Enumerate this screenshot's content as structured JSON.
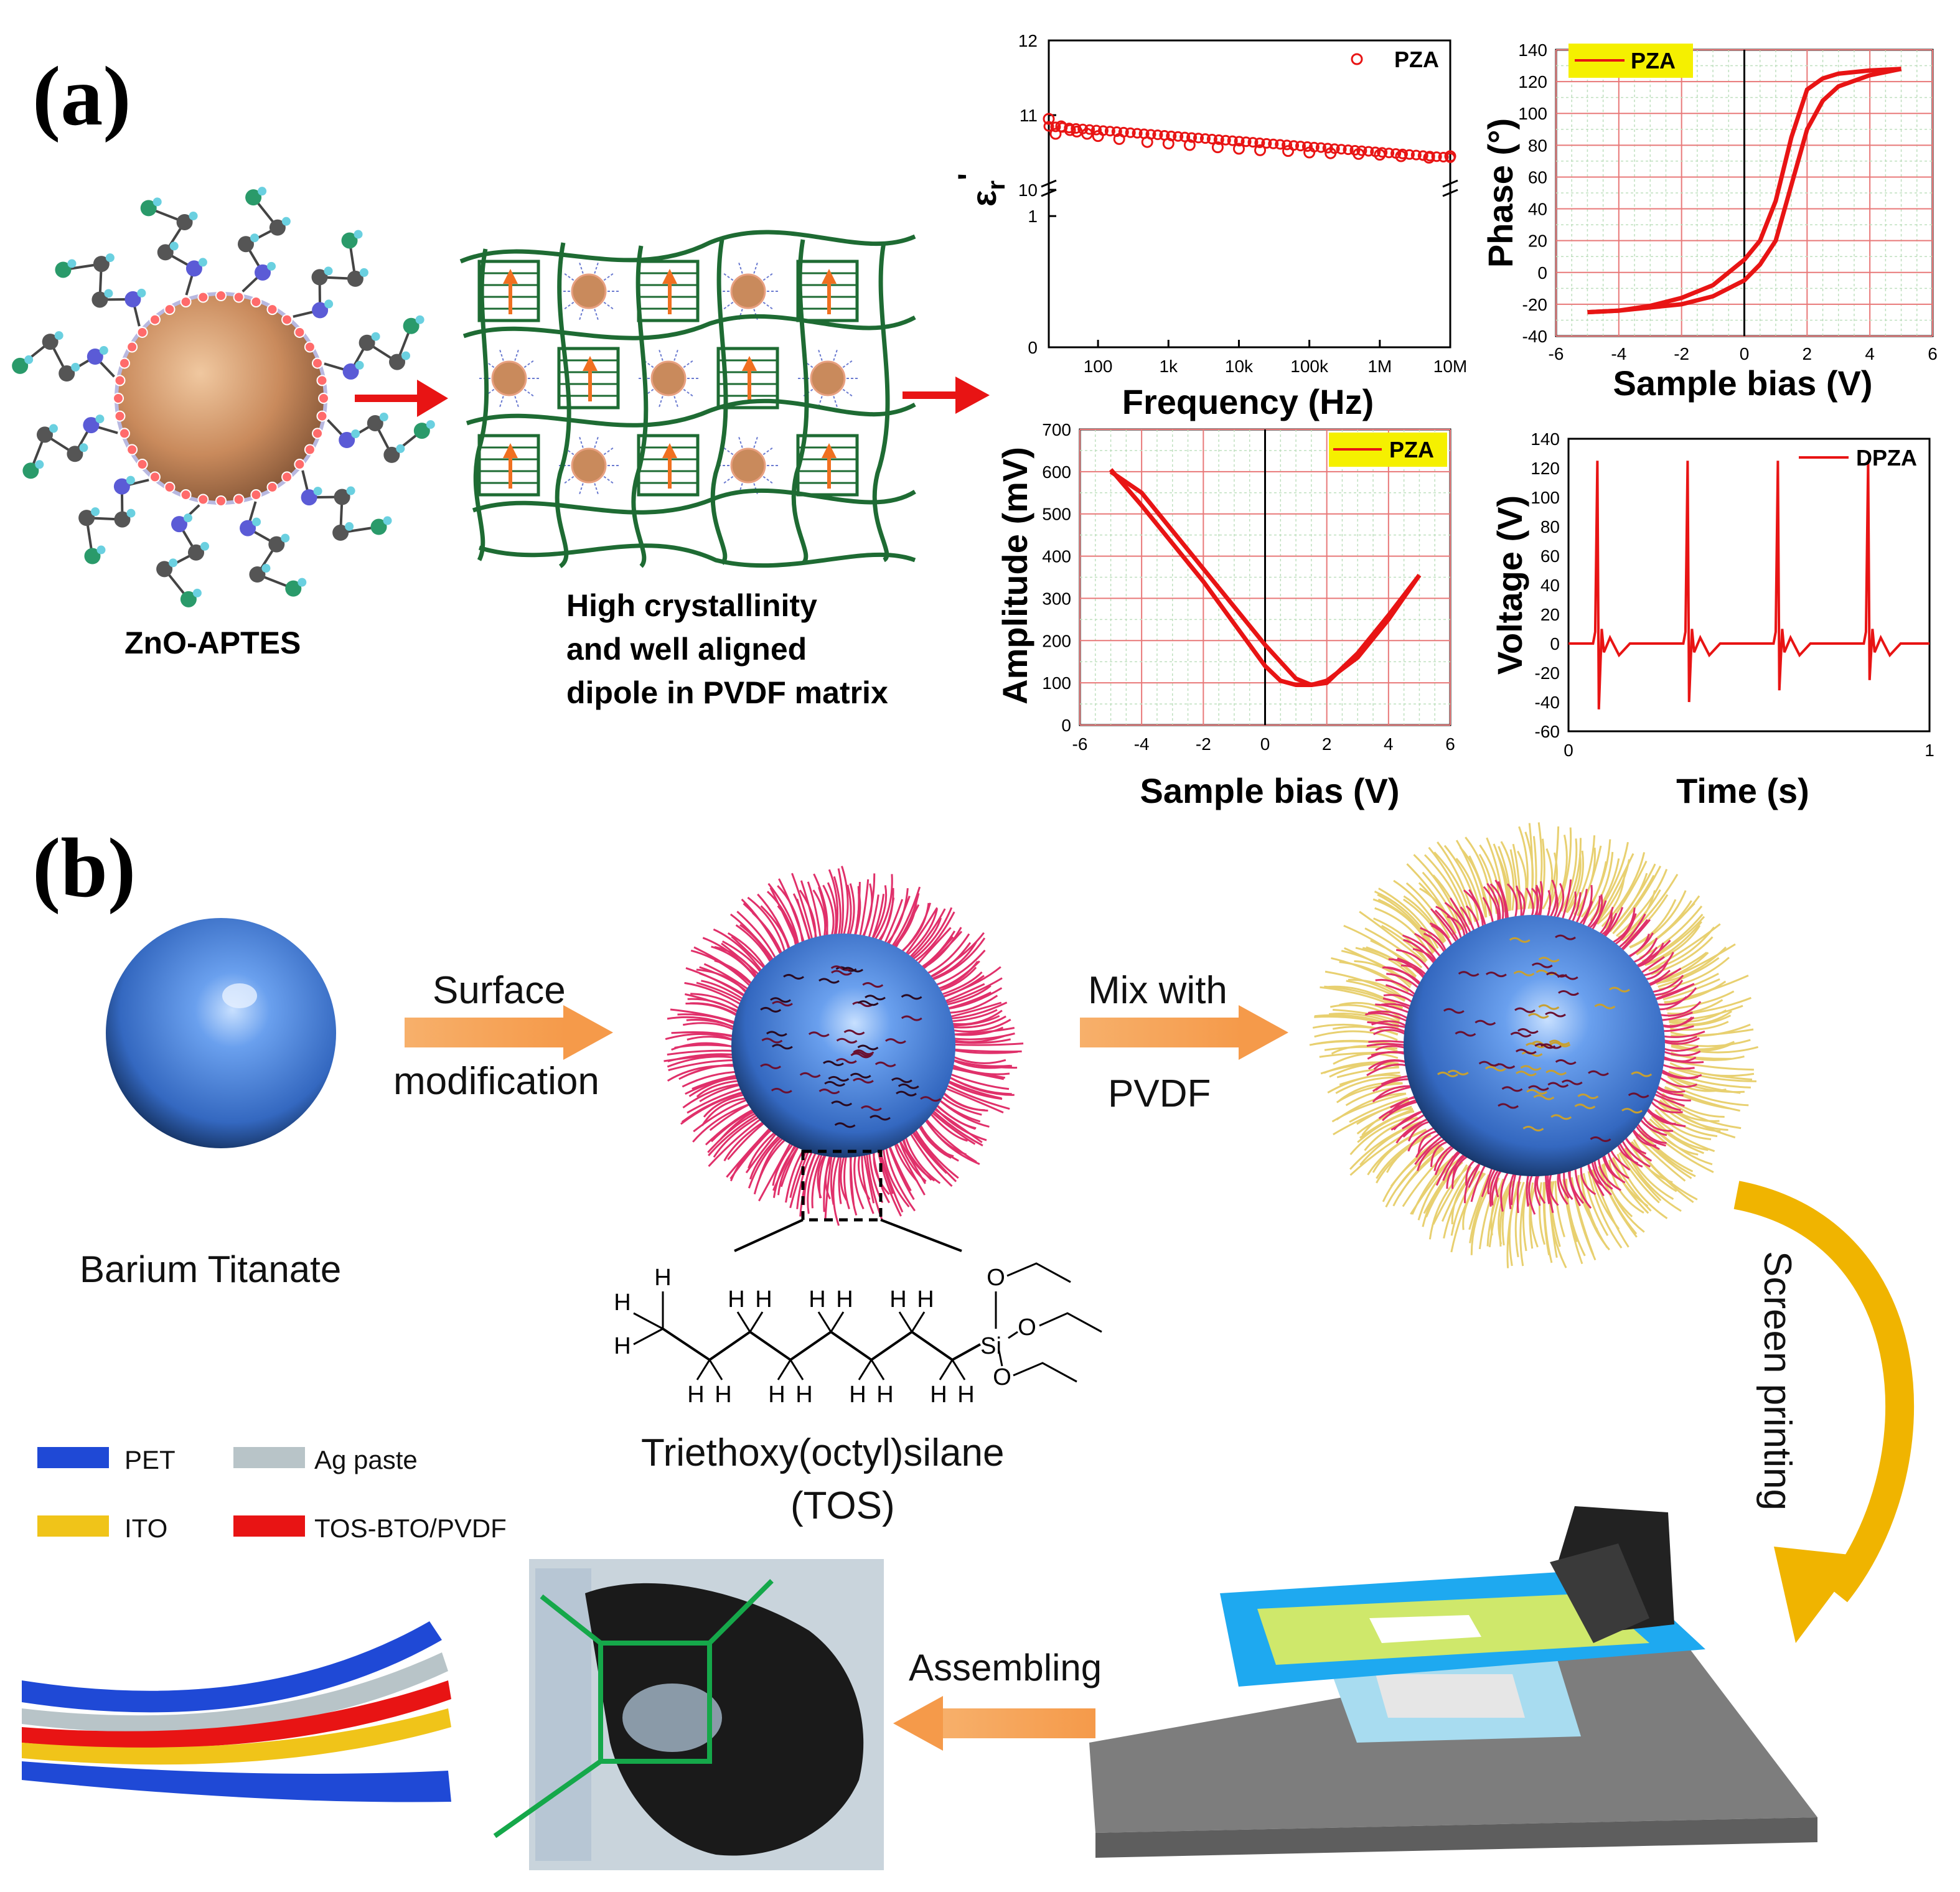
{
  "panels": {
    "a": {
      "label": "(a)",
      "zno_caption": "ZnO-APTES",
      "matrix_caption": [
        "High crystallinity",
        "and well aligned",
        "dipole in PVDF matrix"
      ]
    },
    "b": {
      "label": "(b)",
      "step1_label": "Barium Titanate",
      "arrow1": [
        "Surface",
        "modification"
      ],
      "arrow2": [
        "Mix with",
        "PVDF"
      ],
      "arrow3": "Screen printing",
      "arrow4": "Assembling",
      "molecule_name": [
        "Triethoxy(octyl)silane",
        "(TOS)"
      ],
      "atoms": {
        "h": "H",
        "si": "Si",
        "o": "O"
      },
      "layer_legend": [
        {
          "label": "PET",
          "color": "#1f49d6"
        },
        {
          "label": "Ag paste",
          "color": "#b8c4c8"
        },
        {
          "label": "ITO",
          "color": "#f0c419"
        },
        {
          "label": "TOS-BTO/PVDF",
          "color": "#e81414"
        }
      ]
    }
  },
  "chart_data": [
    {
      "type": "scatter",
      "id": "permittivity",
      "xlabel": "Frequency (Hz)",
      "ylabel": "εr'",
      "legend": "PZA",
      "x_scale": "log",
      "xlim": [
        20,
        10000000
      ],
      "x_ticks": [
        "100",
        "1k",
        "10k",
        "100k",
        "1M",
        "10M"
      ],
      "y_ticks_lower": [
        "0",
        "1"
      ],
      "y_ticks_upper": [
        "10",
        "11",
        "12"
      ],
      "y_break": [
        1,
        10
      ],
      "x": [
        20,
        25,
        30,
        40,
        50,
        70,
        100,
        200,
        500,
        1000,
        2000,
        5000,
        10000,
        20000,
        50000,
        100000,
        200000,
        500000,
        1000000,
        2000000,
        5000000,
        10000000
      ],
      "y": [
        10.95,
        10.75,
        10.85,
        10.8,
        10.78,
        10.75,
        10.72,
        10.68,
        10.64,
        10.62,
        10.6,
        10.57,
        10.55,
        10.53,
        10.52,
        10.5,
        10.49,
        10.48,
        10.47,
        10.45,
        10.43,
        10.45
      ]
    },
    {
      "type": "line",
      "id": "phase",
      "xlabel": "Sample bias (V)",
      "ylabel": "Phase (°)",
      "legend": "PZA",
      "xlim": [
        -6,
        6
      ],
      "ylim": [
        -40,
        140
      ],
      "x_ticks": [
        "-6",
        "-4",
        "-2",
        "0",
        "2",
        "4",
        "6"
      ],
      "y_ticks": [
        "-40",
        "-20",
        "0",
        "20",
        "40",
        "60",
        "80",
        "100",
        "120",
        "140"
      ],
      "forward": {
        "x": [
          -5,
          -4,
          -3,
          -2,
          -1,
          0,
          0.5,
          1,
          1.5,
          2,
          2.5,
          3,
          4,
          5
        ],
        "y": [
          -25,
          -24,
          -22,
          -20,
          -15,
          -5,
          5,
          20,
          55,
          90,
          108,
          117,
          124,
          128
        ]
      },
      "reverse": {
        "x": [
          5,
          4,
          3,
          2.5,
          2,
          1.5,
          1,
          0.5,
          0,
          -1,
          -2,
          -3,
          -4,
          -5
        ],
        "y": [
          128,
          127,
          125,
          122,
          115,
          85,
          45,
          20,
          8,
          -8,
          -16,
          -21,
          -24,
          -25
        ]
      }
    },
    {
      "type": "line",
      "id": "amplitude",
      "xlabel": "Sample bias (V)",
      "ylabel": "Amplitude (mV)",
      "legend": "PZA",
      "xlim": [
        -6,
        6
      ],
      "ylim": [
        0,
        700
      ],
      "x_ticks": [
        "-6",
        "-4",
        "-2",
        "0",
        "2",
        "4",
        "6"
      ],
      "y_ticks": [
        "0",
        "100",
        "200",
        "300",
        "400",
        "500",
        "600",
        "700"
      ],
      "forward": {
        "x": [
          -5,
          -4,
          -3,
          -2,
          -1,
          0,
          0.5,
          1,
          1.5,
          2,
          3,
          4,
          5
        ],
        "y": [
          600,
          550,
          460,
          370,
          280,
          190,
          150,
          110,
          95,
          100,
          170,
          260,
          355
        ]
      },
      "reverse": {
        "x": [
          5,
          4,
          3,
          2,
          1.5,
          1,
          0.5,
          0,
          -1,
          -2,
          -3,
          -4,
          -5
        ],
        "y": [
          355,
          250,
          160,
          105,
          95,
          95,
          105,
          140,
          240,
          340,
          430,
          520,
          605
        ]
      }
    },
    {
      "type": "line",
      "id": "voltage",
      "xlabel": "Time (s)",
      "ylabel": "Voltage (V)",
      "legend": "DPZA",
      "xlim": [
        0,
        1
      ],
      "ylim": [
        -60,
        140
      ],
      "x_ticks": [
        "0",
        "1"
      ],
      "y_ticks": [
        "-60",
        "-40",
        "-20",
        "0",
        "20",
        "40",
        "60",
        "80",
        "100",
        "120",
        "140"
      ],
      "spikes": [
        {
          "t": 0.08,
          "peak": 125,
          "trough": -45
        },
        {
          "t": 0.33,
          "peak": 125,
          "trough": -40
        },
        {
          "t": 0.58,
          "peak": 125,
          "trough": -32
        },
        {
          "t": 0.83,
          "peak": 125,
          "trough": -25
        }
      ]
    }
  ]
}
